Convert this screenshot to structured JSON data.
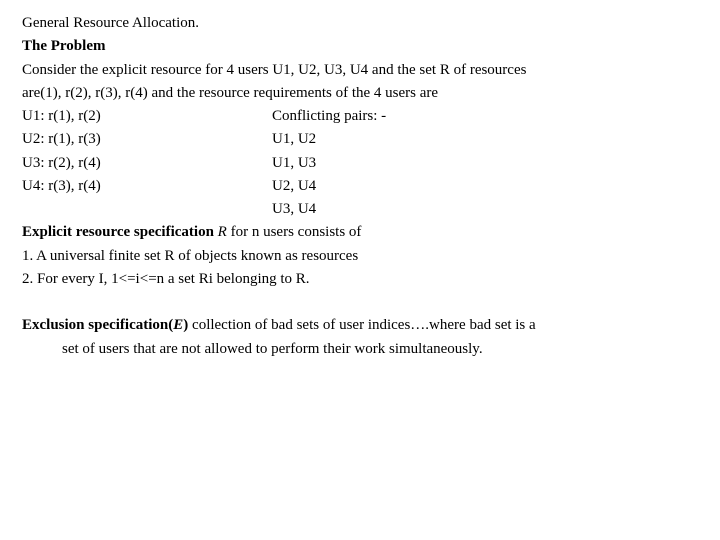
{
  "title": "General Resource Allocation.",
  "heading": "The Problem",
  "intro1": "Consider the explicit resource for 4 users U1, U2, U3, U4 and the set R of resources",
  "intro2": " are(1), r(2), r(3), r(4) and the resource requirements of the 4 users are",
  "rows": [
    {
      "left": "U1: r(1), r(2)",
      "right": "Conflicting pairs: -"
    },
    {
      "left": "U2: r(1), r(3)",
      "right": " U1, U2"
    },
    {
      "left": "U3: r(2), r(4)",
      "right": " U1, U3"
    },
    {
      "left": "U4: r(3), r(4)",
      "right": " U2, U4"
    },
    {
      "left": "",
      "right": " U3, U4"
    }
  ],
  "explicit_prefix": "Explicit resource specification ",
  "explicit_R": "R ",
  "explicit_suffix": " for n users consists of",
  "item1": "1. A universal finite set R of objects known as resources",
  "item2": "2. For every I, 1<=i<=n a set Ri belonging  to R.",
  "excl_prefix": "Exclusion specification(",
  "excl_E": "E",
  "excl_mid": ") ",
  "excl_body1": "collection of bad sets of user indices….where bad set is a",
  "excl_body2": "set of users that are not allowed to perform their work simultaneously."
}
